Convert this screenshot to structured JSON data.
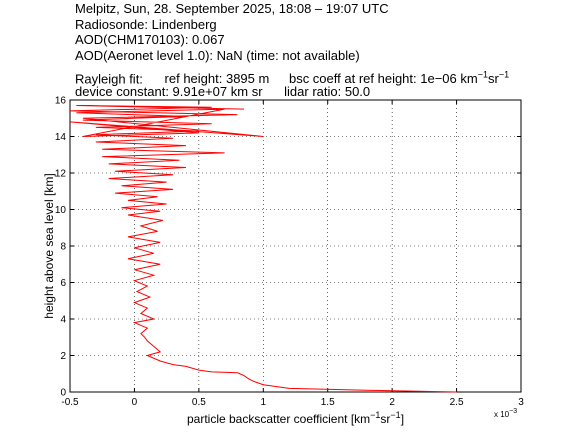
{
  "header": {
    "line1": "Melpitz, Sun, 28. September 2025, 18:08 – 19:07 UTC",
    "line2": "Radiosonde: Lindenberg",
    "line3": "AOD(CHM170103): 0.067",
    "line4": "AOD(Aeronet level 1.0): NaN   (time: not available)",
    "rayleigh_label": "Rayleigh fit:",
    "ref_height": "ref height: 3895 m",
    "bsc_coeff": "bsc coeff at ref height: 1e−06 km",
    "bsc_exp1": "−1",
    "bsc_sr": "sr",
    "bsc_exp2": "−1",
    "device_constant": "device constant: 9.91e+07 km sr",
    "lidar_ratio": "lidar ratio: 50.0"
  },
  "chart_data": {
    "type": "line",
    "xlabel": "particle backscatter coefficient [km",
    "xlabel_exp1": "−1",
    "xlabel_sr": "sr",
    "xlabel_exp2": "−1",
    "xlabel_close": "]",
    "ylabel": "height above sea level [km]",
    "x_multiplier": "x 10",
    "x_multiplier_exp": "−3",
    "xlim": [
      -0.5,
      3.0
    ],
    "ylim": [
      0,
      16
    ],
    "xticks": [
      "-0.5",
      "0",
      "0.5",
      "1",
      "1.5",
      "2",
      "2.5",
      "3"
    ],
    "yticks": [
      "0",
      "2",
      "4",
      "6",
      "8",
      "10",
      "12",
      "14",
      "16"
    ],
    "grid": true,
    "line_color": "#ff0000",
    "series": [
      {
        "x": [
          2.5,
          1.8,
          1.2,
          1.0,
          0.92,
          0.88,
          0.85,
          0.8,
          0.6,
          0.5,
          0.4,
          0.3,
          0.2,
          0.1,
          0.2,
          0.15,
          0.1,
          0.08,
          0.05,
          0.1,
          0.0,
          0.15,
          0.05,
          0.1,
          0.0,
          0.12,
          0.02,
          0.1,
          0.0,
          0.15,
          0.0,
          0.2,
          -0.05,
          0.15,
          0.0,
          0.2,
          -0.05,
          0.18,
          0.05,
          0.22,
          -0.05,
          0.2,
          -0.1,
          0.25,
          -0.05,
          0.18,
          -0.15,
          0.3,
          -0.1,
          0.25,
          -0.2,
          0.3,
          -0.15,
          0.4,
          -0.2,
          0.35,
          -0.25,
          0.7,
          -0.25,
          0.4,
          -0.3,
          0.3,
          -0.3,
          0.5,
          -0.3,
          0.6,
          -0.4,
          0.4,
          -0.45,
          0.7,
          -0.4,
          0.5,
          -0.5,
          1.0,
          -0.4,
          0.8,
          -0.5,
          0.6,
          -0.45,
          0.85
        ],
        "y": [
          0.0,
          0.1,
          0.2,
          0.4,
          0.6,
          0.75,
          0.9,
          1.05,
          1.1,
          1.2,
          1.4,
          1.5,
          1.7,
          2.0,
          2.2,
          2.5,
          2.8,
          3.0,
          3.2,
          3.5,
          3.8,
          4.0,
          4.3,
          4.6,
          4.9,
          5.2,
          5.5,
          5.8,
          6.1,
          6.4,
          6.7,
          7.0,
          7.3,
          7.6,
          7.9,
          8.2,
          8.5,
          8.8,
          9.1,
          9.4,
          9.7,
          9.9,
          10.1,
          10.3,
          10.5,
          10.7,
          10.9,
          11.1,
          11.3,
          11.5,
          11.7,
          11.9,
          12.1,
          12.3,
          12.5,
          12.7,
          12.9,
          13.1,
          13.3,
          13.5,
          13.7,
          13.9,
          14.1,
          14.3,
          14.5,
          14.7,
          14.9,
          15.1,
          15.3,
          15.5,
          14.0,
          14.2,
          14.8,
          14.0,
          15.0,
          15.2,
          15.4,
          15.6,
          15.7,
          15.5
        ]
      }
    ]
  }
}
